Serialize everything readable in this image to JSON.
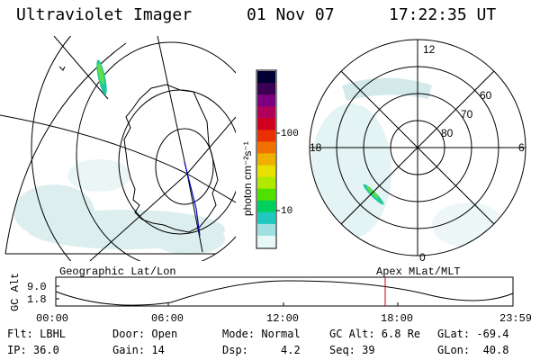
{
  "header": {
    "instrument": "Ultraviolet Imager",
    "date": "01 Nov 07",
    "time": "17:22:35 UT"
  },
  "colorbar": {
    "unit_label": "photon cm⁻²s⁻¹",
    "ticks": [
      "100",
      "10"
    ],
    "colors": [
      "#000033",
      "#3a0055",
      "#7a0080",
      "#b0005a",
      "#d00020",
      "#e83000",
      "#f07000",
      "#f0b000",
      "#e8e000",
      "#b0e800",
      "#50e000",
      "#00d060",
      "#20c8c0",
      "#a0e0e0",
      "#e8f8f8"
    ]
  },
  "polar_plot": {
    "mlt_labels": {
      "top": "12",
      "left": "18",
      "right": "6",
      "bottom": "0"
    },
    "lat_labels": [
      "60",
      "70",
      "80"
    ]
  },
  "timeline": {
    "y_axis_label": "GC Alt",
    "y_ticks": [
      "9.0",
      "1.8"
    ],
    "left_caption": "Geographic Lat/Lon",
    "right_caption": "Apex MLat/MLT",
    "x_ticks": [
      "00:00",
      "06:00",
      "12:00",
      "18:00",
      "23:59"
    ],
    "marker_color": "#cc0000"
  },
  "status": {
    "row1": [
      {
        "key": "flt",
        "text": "Flt: LBHL"
      },
      {
        "key": "door",
        "text": "Door: Open"
      },
      {
        "key": "mode",
        "text": "Mode: Normal"
      },
      {
        "key": "gcalt",
        "text": "GC Alt: 6.8 Re"
      },
      {
        "key": "glat",
        "text": "GLat: -69.4"
      }
    ],
    "row2": [
      {
        "key": "ip",
        "text": "IP: 36.0"
      },
      {
        "key": "gain",
        "text": "Gain: 14"
      },
      {
        "key": "dsp",
        "text": "Dsp:     4.2"
      },
      {
        "key": "seq",
        "text": "Seq: 39"
      },
      {
        "key": "glon",
        "text": "GLon:  40.8"
      }
    ]
  }
}
